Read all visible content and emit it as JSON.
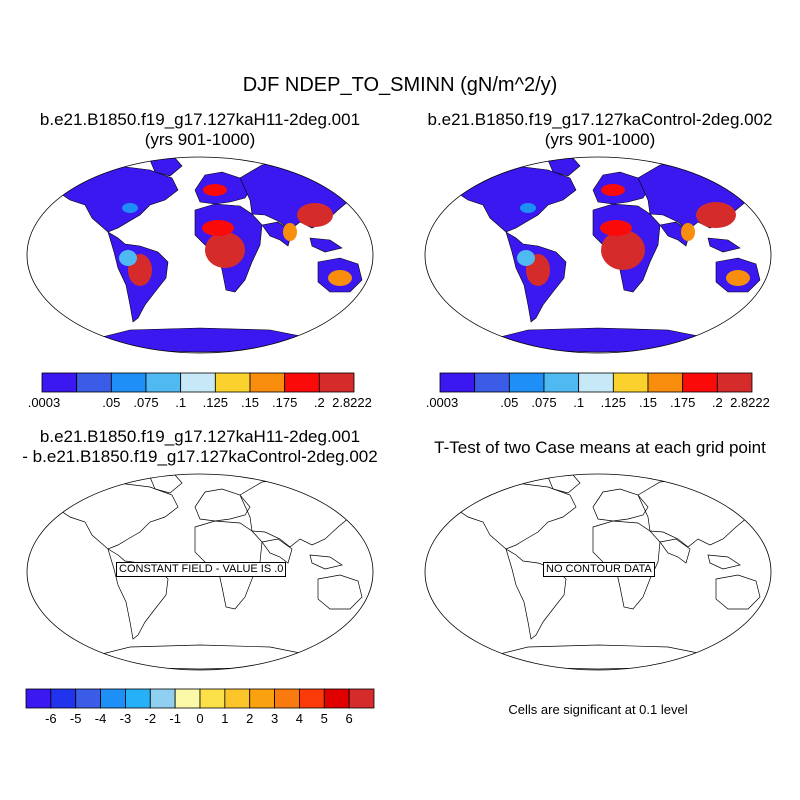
{
  "title": "DJF NDEP_TO_SMINN (gN/m^2/y)",
  "panels": [
    {
      "title1": "b.e21.B1850.f19_g17.127kaH11-2deg.001",
      "title2": "(yrs 901-1000)"
    },
    {
      "title1": "b.e21.B1850.f19_g17.127kaControl-2deg.002",
      "title2": "(yrs 901-1000)"
    },
    {
      "title1": "b.e21.B1850.f19_g17.127kaH11-2deg.001",
      "title2": "- b.e21.B1850.f19_g17.127kaControl-2deg.002",
      "box_label": "CONSTANT FIELD - VALUE IS .0"
    },
    {
      "title1": "T-Test of two Case means at each grid point",
      "box_label": "NO CONTOUR DATA"
    }
  ],
  "top_colorbar": {
    "colors": [
      "#3b18f0",
      "#3a5ce6",
      "#1e8ff7",
      "#4fbaf2",
      "#c7e8f7",
      "#fbd22d",
      "#f98d0e",
      "#fb0a0a",
      "#d62b2b"
    ],
    "labels": [
      ".0003",
      ".05",
      ".075",
      ".1",
      ".125",
      ".15",
      ".175",
      ".2",
      "2.8222"
    ]
  },
  "diff_colorbar": {
    "colors": [
      "#3b18f0",
      "#2233ee",
      "#3a5ce6",
      "#1e8ff7",
      "#26b0f7",
      "#8fcff0",
      "#fbf8a8",
      "#fbe04a",
      "#fbc42a",
      "#f9a10e",
      "#f97a0e",
      "#fb3a0a",
      "#e00000",
      "#d62b2b"
    ],
    "labels": [
      "-6",
      "-5",
      "-4",
      "-3",
      "-2",
      "-1",
      "0",
      "1",
      "2",
      "3",
      "4",
      "5",
      "6"
    ]
  },
  "significance_note": "Cells are significant at 0.1 level"
}
